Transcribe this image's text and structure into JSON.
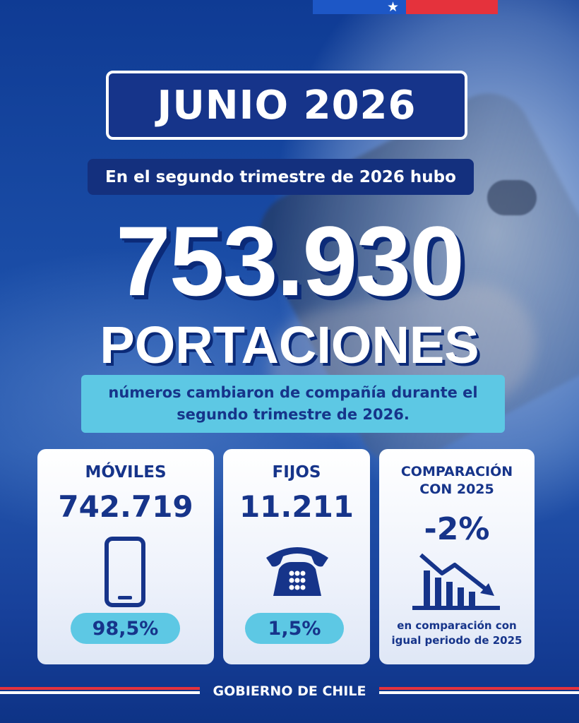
{
  "flag": {
    "colors": {
      "blue": "#1d57c6",
      "red": "#e5323c",
      "star": "#ffffff"
    }
  },
  "header": {
    "title": "JUNIO 2026",
    "subtitle": "En el segundo trimestre de 2026 hubo"
  },
  "hero": {
    "number": "753.930",
    "word": "PORTACIONES",
    "description_line1": "números cambiaron de compañía durante el",
    "description_line2": "segundo trimestre de 2026."
  },
  "cards": {
    "moviles": {
      "label": "MÓVILES",
      "value": "742.719",
      "icon": "smartphone-icon",
      "percent": "98,5%"
    },
    "fijos": {
      "label": "FIJOS",
      "value": "11.211",
      "icon": "telephone-icon",
      "percent": "1,5%"
    },
    "comparacion": {
      "label_line1": "COMPARACIÓN",
      "label_line2": "CON 2025",
      "value": "-2%",
      "icon": "declining-bar-chart-icon",
      "note_line1": "en comparación con",
      "note_line2": "igual periodo de 2025"
    }
  },
  "footer": {
    "text": "GOBIERNO DE CHILE"
  },
  "colors": {
    "navy": "#16348a",
    "accent": "#5dc8e4",
    "white": "#ffffff"
  }
}
